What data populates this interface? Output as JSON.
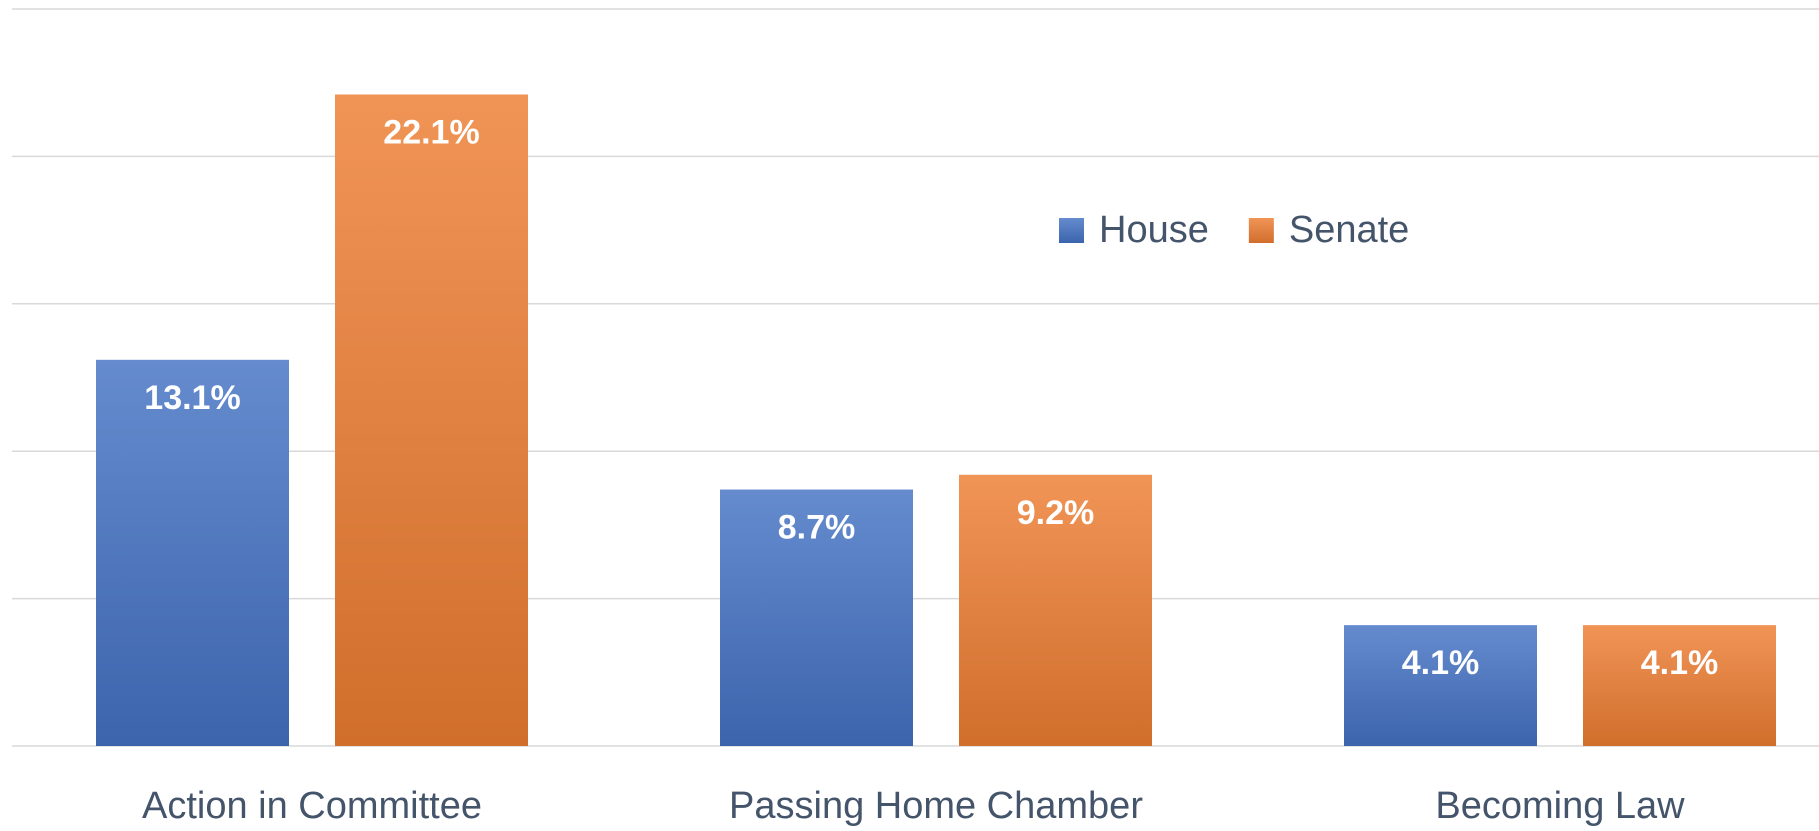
{
  "chart_data": {
    "type": "bar",
    "categories": [
      "Action in Committee",
      "Passing Home Chamber",
      "Becoming Law"
    ],
    "series": [
      {
        "name": "House",
        "color": "#4472c4",
        "values": [
          13.1,
          8.7,
          4.1
        ],
        "value_labels": [
          "13.1%",
          "8.7%",
          "4.1%"
        ]
      },
      {
        "name": "Senate",
        "color": "#ed7d31",
        "values": [
          22.1,
          9.2,
          4.1
        ],
        "value_labels": [
          "22.1%",
          "9.2%",
          "4.1%"
        ]
      }
    ],
    "ylim": [
      0,
      25
    ],
    "yticks": [
      0,
      5,
      10,
      15,
      20,
      25
    ],
    "grid": true,
    "legend": "top-right"
  }
}
